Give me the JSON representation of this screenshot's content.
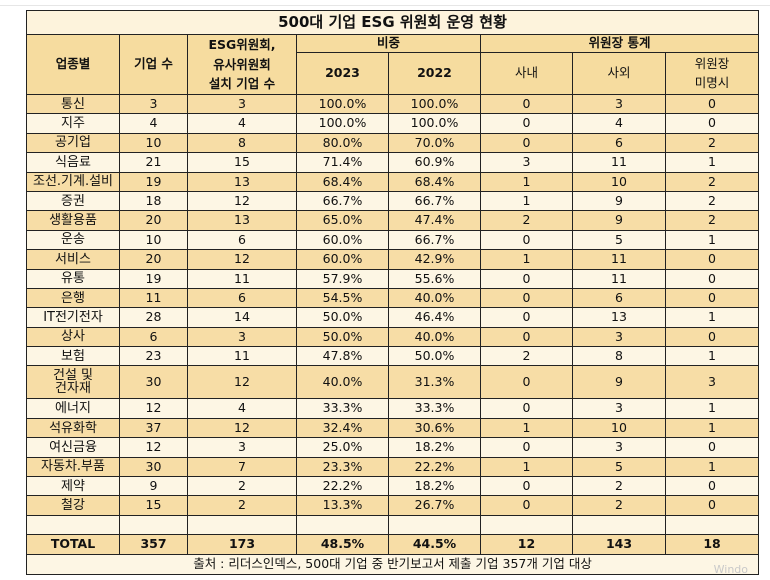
{
  "title": "500대 기업 ESG 위원회 운영 현황",
  "headers": {
    "industry": "업종별",
    "companies": "기업 수",
    "esg_committee": "ESG위원회,\n유사위원회\n설치 기업 수",
    "ratio": "비중",
    "y2023": "2023",
    "y2022": "2022",
    "chair_stats": "위원장 통계",
    "internal": "사내",
    "external": "사외",
    "unnamed": "위원장\n미명시"
  },
  "rows": [
    [
      "통신",
      "3",
      "3",
      "100.0%",
      "100.0%",
      "0",
      "3",
      "0"
    ],
    [
      "지주",
      "4",
      "4",
      "100.0%",
      "100.0%",
      "0",
      "4",
      "0"
    ],
    [
      "공기업",
      "10",
      "8",
      "80.0%",
      "70.0%",
      "0",
      "6",
      "2"
    ],
    [
      "식음료",
      "21",
      "15",
      "71.4%",
      "60.9%",
      "3",
      "11",
      "1"
    ],
    [
      "조선.기계.설비",
      "19",
      "13",
      "68.4%",
      "68.4%",
      "1",
      "10",
      "2"
    ],
    [
      "증권",
      "18",
      "12",
      "66.7%",
      "66.7%",
      "1",
      "9",
      "2"
    ],
    [
      "생활용품",
      "20",
      "13",
      "65.0%",
      "47.4%",
      "2",
      "9",
      "2"
    ],
    [
      "운송",
      "10",
      "6",
      "60.0%",
      "66.7%",
      "0",
      "5",
      "1"
    ],
    [
      "서비스",
      "20",
      "12",
      "60.0%",
      "42.9%",
      "1",
      "11",
      "0"
    ],
    [
      "유통",
      "19",
      "11",
      "57.9%",
      "55.6%",
      "0",
      "11",
      "0"
    ],
    [
      "은행",
      "11",
      "6",
      "54.5%",
      "40.0%",
      "0",
      "6",
      "0"
    ],
    [
      "IT전기전자",
      "28",
      "14",
      "50.0%",
      "46.4%",
      "0",
      "13",
      "1"
    ],
    [
      "상사",
      "6",
      "3",
      "50.0%",
      "40.0%",
      "0",
      "3",
      "0"
    ],
    [
      "보험",
      "23",
      "11",
      "47.8%",
      "50.0%",
      "2",
      "8",
      "1"
    ],
    [
      "건설 및\n건자재",
      "30",
      "12",
      "40.0%",
      "31.3%",
      "0",
      "9",
      "3"
    ],
    [
      "에너지",
      "12",
      "4",
      "33.3%",
      "33.3%",
      "0",
      "3",
      "1"
    ],
    [
      "석유화학",
      "37",
      "12",
      "32.4%",
      "30.6%",
      "1",
      "10",
      "1"
    ],
    [
      "여신금융",
      "12",
      "3",
      "25.0%",
      "18.2%",
      "0",
      "3",
      "0"
    ],
    [
      "자동차.부품",
      "30",
      "7",
      "23.3%",
      "22.2%",
      "1",
      "5",
      "1"
    ],
    [
      "제약",
      "9",
      "2",
      "22.2%",
      "18.2%",
      "0",
      "2",
      "0"
    ],
    [
      "철강",
      "15",
      "2",
      "13.3%",
      "26.7%",
      "0",
      "2",
      "0"
    ]
  ],
  "total": [
    "TOTAL",
    "357",
    "173",
    "48.5%",
    "44.5%",
    "12",
    "143",
    "18"
  ],
  "source": "출처 : 리더스인덱스, 500대 기업 중 반기보고서 제출 기업 357개 기업 대상",
  "watermark": "Windo"
}
